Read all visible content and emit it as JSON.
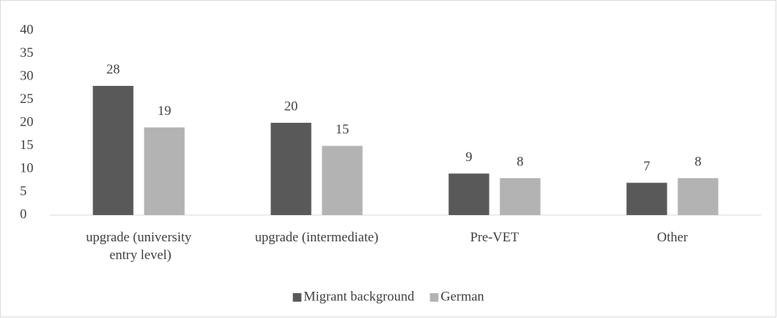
{
  "chart_data": {
    "type": "bar",
    "categories": [
      "upgrade (university entry level)",
      "upgrade (intermediate)",
      "Pre-VET",
      "Other"
    ],
    "series": [
      {
        "name": "Migrant background",
        "color": "#595959",
        "values": [
          28,
          20,
          9,
          7
        ]
      },
      {
        "name": "German",
        "color": "#b3b3b3",
        "values": [
          19,
          15,
          8,
          8
        ]
      }
    ],
    "ylim": [
      0,
      40
    ],
    "yticks": [
      0,
      5,
      10,
      15,
      20,
      25,
      30,
      35,
      40
    ],
    "grid": false,
    "legend": "bottom"
  }
}
